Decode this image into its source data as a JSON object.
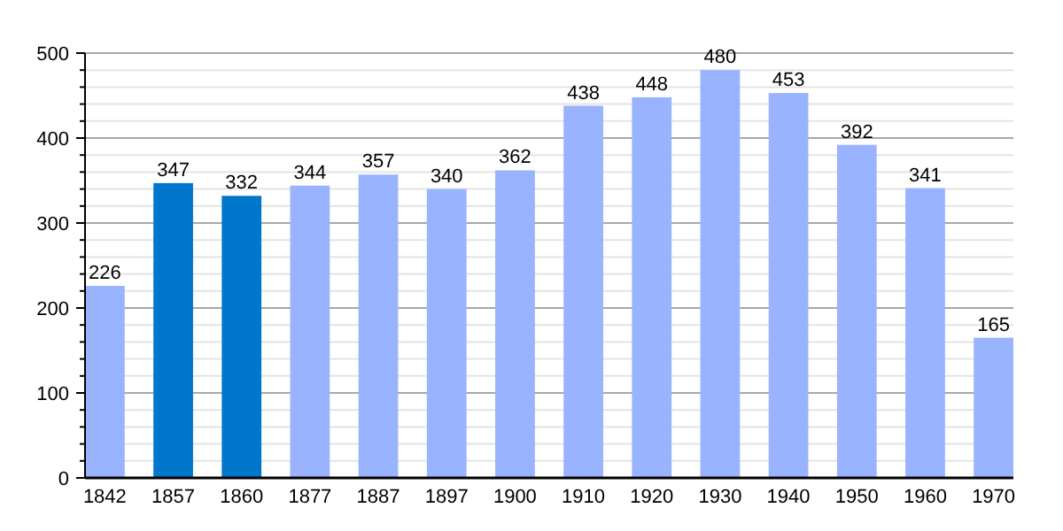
{
  "chart_data": {
    "type": "bar",
    "categories": [
      "1842",
      "1857",
      "1860",
      "1877",
      "1887",
      "1897",
      "1900",
      "1910",
      "1920",
      "1930",
      "1940",
      "1950",
      "1960",
      "1970"
    ],
    "values": [
      226,
      347,
      332,
      344,
      357,
      340,
      362,
      438,
      448,
      480,
      453,
      392,
      341,
      165
    ],
    "colors": [
      "#99b3ff",
      "#0077cc",
      "#0077cc",
      "#99b3ff",
      "#99b3ff",
      "#99b3ff",
      "#99b3ff",
      "#99b3ff",
      "#99b3ff",
      "#99b3ff",
      "#99b3ff",
      "#99b3ff",
      "#99b3ff",
      "#99b3ff"
    ],
    "ylim": [
      0,
      500
    ],
    "yticks": [
      0,
      {
        "value": 20,
        "label": null
      },
      {
        "value": 40,
        "label": null
      },
      {
        "value": 60,
        "label": null
      },
      {
        "value": 80,
        "label": null
      },
      100,
      {
        "value": 120,
        "label": null
      },
      {
        "value": 140,
        "label": null
      },
      {
        "value": 160,
        "label": null
      },
      {
        "value": 180,
        "label": null
      },
      200,
      {
        "value": 220,
        "label": null
      },
      {
        "value": 240,
        "label": null
      },
      {
        "value": 260,
        "label": null
      },
      {
        "value": 280,
        "label": null
      },
      300,
      {
        "value": 320,
        "label": null
      },
      {
        "value": 340,
        "label": null
      },
      {
        "value": 360,
        "label": null
      },
      {
        "value": 380,
        "label": null
      },
      400,
      {
        "value": 420,
        "label": null
      },
      {
        "value": 440,
        "label": null
      },
      {
        "value": 460,
        "label": null
      },
      {
        "value": 480,
        "label": null
      },
      500
    ],
    "grid": true,
    "data_labels": true
  }
}
